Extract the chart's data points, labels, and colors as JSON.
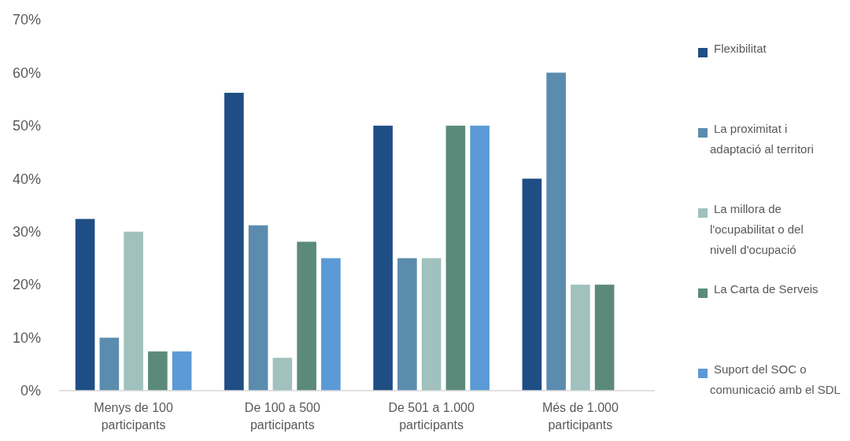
{
  "chart_data": {
    "type": "bar",
    "categories": [
      "Menys de 100 participants",
      "De 100 a 500 participants",
      "De 501 a 1.000 participants",
      "Més de 1.000 participants"
    ],
    "series": [
      {
        "name": "Flexibilitat",
        "color": "#1f4e84",
        "values": [
          32.4,
          56.2,
          50,
          40
        ]
      },
      {
        "name": "La proximitat i adaptació al territori",
        "color": "#5b8cae",
        "values": [
          10,
          31.2,
          25,
          60
        ]
      },
      {
        "name": "La millora de l'ocupabilitat o del nivell d'ocupació",
        "color": "#a0c1bd",
        "values": [
          30,
          6.2,
          25,
          20
        ]
      },
      {
        "name": "La Carta de Serveis",
        "color": "#5b8a7b",
        "values": [
          7.4,
          28.1,
          50,
          20
        ]
      },
      {
        "name": "Suport del SOC o comunicació amb el SDL",
        "color": "#5b9ad6",
        "values": [
          7.4,
          25,
          50,
          null
        ]
      }
    ],
    "ylim": [
      0,
      70
    ],
    "yticks": [
      {
        "value": 0,
        "label": "0%"
      },
      {
        "value": 10,
        "label": "10%"
      },
      {
        "value": 20,
        "label": "20%"
      },
      {
        "value": 30,
        "label": "30%"
      },
      {
        "value": 40,
        "label": "40%"
      },
      {
        "value": 50,
        "label": "50%"
      },
      {
        "value": 60,
        "label": "60%"
      },
      {
        "value": 70,
        "label": "70%"
      }
    ],
    "grid": false,
    "legend": "right"
  }
}
